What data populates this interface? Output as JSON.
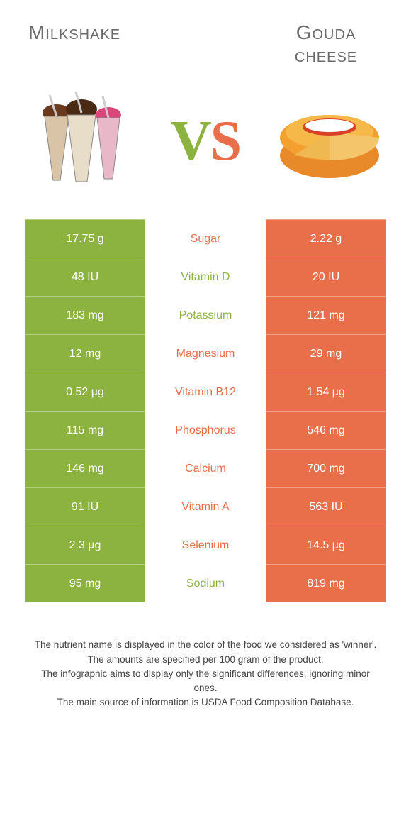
{
  "colors": {
    "green": "#8cb23f",
    "orange": "#e86f4a",
    "titleGray": "#6b6b6b",
    "bodyText": "#444"
  },
  "header": {
    "leftTitle": "Milkshake",
    "rightTitle": "Gouda cheese",
    "vsV": "V",
    "vsS": "S"
  },
  "rows": [
    {
      "left": "17.75 g",
      "label": "Sugar",
      "right": "2.22 g",
      "winner": "orange"
    },
    {
      "left": "48 IU",
      "label": "Vitamin D",
      "right": "20 IU",
      "winner": "green"
    },
    {
      "left": "183 mg",
      "label": "Potassium",
      "right": "121 mg",
      "winner": "green"
    },
    {
      "left": "12 mg",
      "label": "Magnesium",
      "right": "29 mg",
      "winner": "orange"
    },
    {
      "left": "0.52 µg",
      "label": "Vitamin B12",
      "right": "1.54 µg",
      "winner": "orange"
    },
    {
      "left": "115 mg",
      "label": "Phosphorus",
      "right": "546 mg",
      "winner": "orange"
    },
    {
      "left": "146 mg",
      "label": "Calcium",
      "right": "700 mg",
      "winner": "orange"
    },
    {
      "left": "91 IU",
      "label": "Vitamin A",
      "right": "563 IU",
      "winner": "orange"
    },
    {
      "left": "2.3 µg",
      "label": "Selenium",
      "right": "14.5 µg",
      "winner": "orange"
    },
    {
      "left": "95 mg",
      "label": "Sodium",
      "right": "819 mg",
      "winner": "green"
    }
  ],
  "footer": {
    "line1": "The nutrient name is displayed in the color of the food we considered as 'winner'.",
    "line2": "The amounts are specified per 100 gram of the product.",
    "line3": "The infographic aims to display only the significant differences, ignoring minor ones.",
    "line4": "The main source of information is USDA Food Composition Database."
  }
}
